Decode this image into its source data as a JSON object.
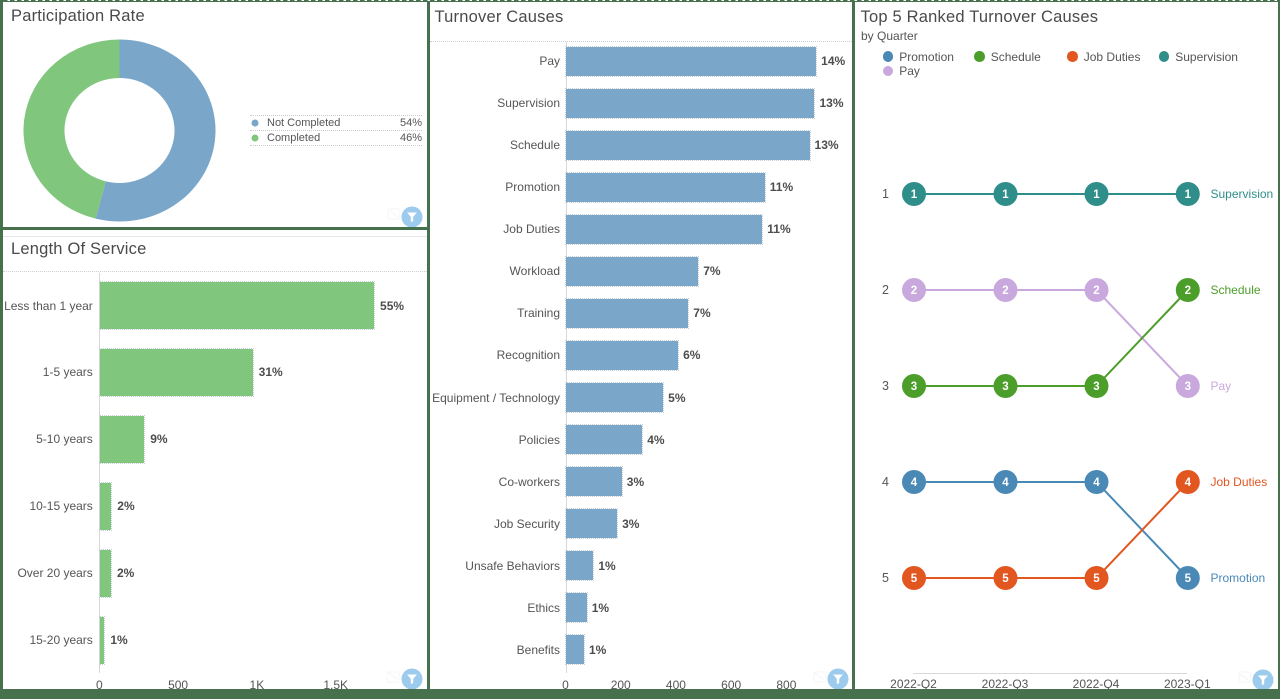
{
  "frame": {
    "background_color": "#47714d"
  },
  "participation": {
    "title": "Participation Rate",
    "chart_data": {
      "type": "pie",
      "donut": true,
      "start_angle_deg": 0,
      "slices": [
        {
          "label": "Not Completed",
          "pct": 54,
          "color": "#7aa6c9"
        },
        {
          "label": "Completed",
          "pct": 46,
          "color": "#81c67d"
        }
      ]
    },
    "legend": [
      {
        "label": "Not Completed",
        "value": "54%",
        "color": "#7aa6c9"
      },
      {
        "label": "Completed",
        "value": "46%",
        "color": "#81c67d"
      }
    ]
  },
  "length_of_service": {
    "title": "Length Of Service",
    "chart_data": {
      "type": "bar",
      "orientation": "horizontal",
      "color": "#81c67d",
      "categories": [
        "Less than 1 year",
        "1-5 years",
        "5-10 years",
        "10-15 years",
        "Over 20 years",
        "15-20 years"
      ],
      "values": [
        1740,
        970,
        282,
        73,
        71,
        29
      ],
      "labels": [
        "55%",
        "31%",
        "9%",
        "2%",
        "2%",
        "1%"
      ],
      "x_ticks": [
        {
          "value": 0,
          "label": "0"
        },
        {
          "value": 500,
          "label": "500"
        },
        {
          "value": 1000,
          "label": "1K"
        },
        {
          "value": 1500,
          "label": "1,5K"
        }
      ],
      "xlim": [
        0,
        2075
      ],
      "grid": false
    }
  },
  "turnover_causes": {
    "title": "Turnover Causes",
    "chart_data": {
      "type": "bar",
      "orientation": "horizontal",
      "color": "#7aa6c9",
      "categories": [
        "Pay",
        "Supervision",
        "Schedule",
        "Promotion",
        "Job Duties",
        "Workload",
        "Training",
        "Recognition",
        "Equipment / Technology",
        "Policies",
        "Co-workers",
        "Job Security",
        "Unsafe Behaviors",
        "Ethics",
        "Benefits"
      ],
      "values": [
        906,
        900,
        882,
        720,
        711,
        479,
        443,
        406,
        352,
        276,
        202,
        185,
        99,
        75,
        65
      ],
      "labels": [
        "14%",
        "13%",
        "13%",
        "11%",
        "11%",
        "7%",
        "7%",
        "6%",
        "5%",
        "4%",
        "3%",
        "3%",
        "1%",
        "1%",
        "1%"
      ],
      "x_ticks": [
        {
          "value": 0,
          "label": "0"
        },
        {
          "value": 200,
          "label": "200"
        },
        {
          "value": 400,
          "label": "400"
        },
        {
          "value": 600,
          "label": "600"
        },
        {
          "value": 800,
          "label": "800"
        }
      ],
      "xlim": [
        0,
        1037
      ],
      "grid": false
    }
  },
  "top5": {
    "title": "Top 5 Ranked Turnover Causes",
    "subtitle": "by Quarter",
    "chart_data": {
      "type": "line",
      "variant": "bump-rank",
      "x_categories": [
        "2022-Q2",
        "2022-Q3",
        "2022-Q4",
        "2023-Q1"
      ],
      "rank_labels": [
        "1",
        "2",
        "3",
        "4",
        "5"
      ],
      "series": [
        {
          "name": "Promotion",
          "color": "#4a89b6",
          "ranks": [
            4,
            4,
            4,
            5
          ]
        },
        {
          "name": "Pay",
          "color": "#c9a9dd",
          "ranks": [
            2,
            2,
            2,
            3
          ]
        },
        {
          "name": "Schedule",
          "color": "#4c9e2a",
          "ranks": [
            3,
            3,
            3,
            2
          ]
        },
        {
          "name": "Job Duties",
          "color": "#e25620",
          "ranks": [
            5,
            5,
            5,
            4
          ]
        },
        {
          "name": "Supervision",
          "color": "#2f8e89",
          "ranks": [
            1,
            1,
            1,
            1
          ]
        }
      ],
      "legend_order": [
        "Promotion",
        "Schedule",
        "Job Duties",
        "Supervision",
        "Pay"
      ],
      "legend_position": "top"
    }
  }
}
